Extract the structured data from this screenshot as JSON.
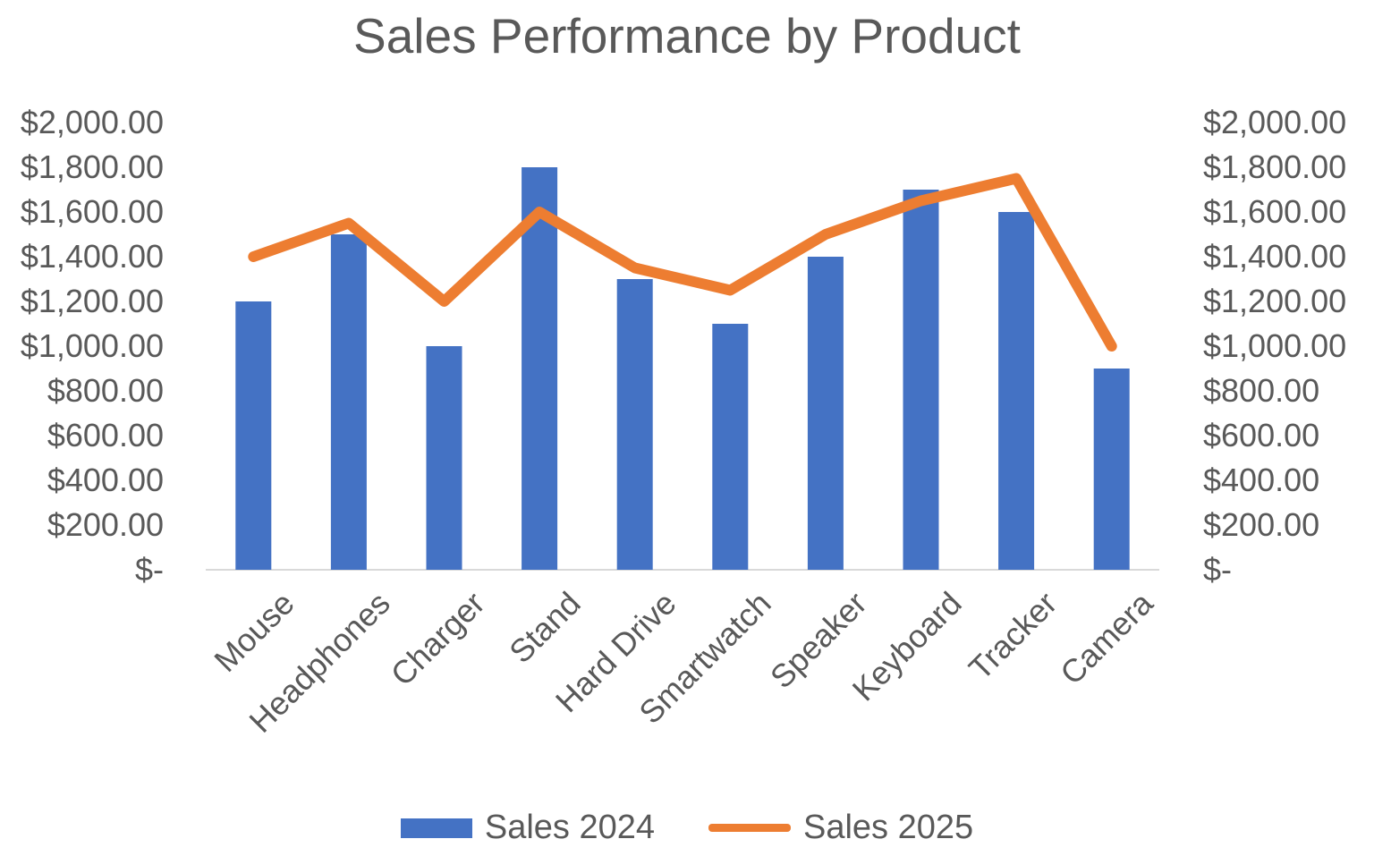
{
  "chart_data": {
    "type": "bar",
    "combo": true,
    "title": "Sales Performance by Product",
    "categories": [
      "Mouse",
      "Headphones",
      "Charger",
      "Stand",
      "Hard Drive",
      "Smartwatch",
      "Speaker",
      "Keyboard",
      "Tracker",
      "Camera"
    ],
    "series": [
      {
        "name": "Sales 2024",
        "type": "bar",
        "color": "#4472C4",
        "values": [
          1200,
          1500,
          1000,
          1800,
          1300,
          1100,
          1400,
          1700,
          1600,
          900
        ]
      },
      {
        "name": "Sales 2025",
        "type": "line",
        "color": "#ED7D31",
        "values": [
          1400,
          1550,
          1200,
          1600,
          1350,
          1250,
          1500,
          1650,
          1750,
          1000
        ]
      }
    ],
    "xlabel": "",
    "ylabel": "",
    "ylim": [
      0,
      2000
    ],
    "y_tick_step": 200,
    "grid": false,
    "legend_position": "bottom",
    "dual_axis": true
  },
  "y_axis": {
    "ticks": [
      "$2,000.00",
      "$1,800.00",
      "$1,600.00",
      "$1,400.00",
      "$1,200.00",
      "$1,000.00",
      "$800.00",
      "$600.00",
      "$400.00",
      "$200.00",
      "$-"
    ]
  },
  "colors": {
    "bar": "#4472C4",
    "line": "#ED7D31",
    "text": "#595959",
    "axis_line": "#D9D9D9",
    "background": "#FFFFFF"
  }
}
